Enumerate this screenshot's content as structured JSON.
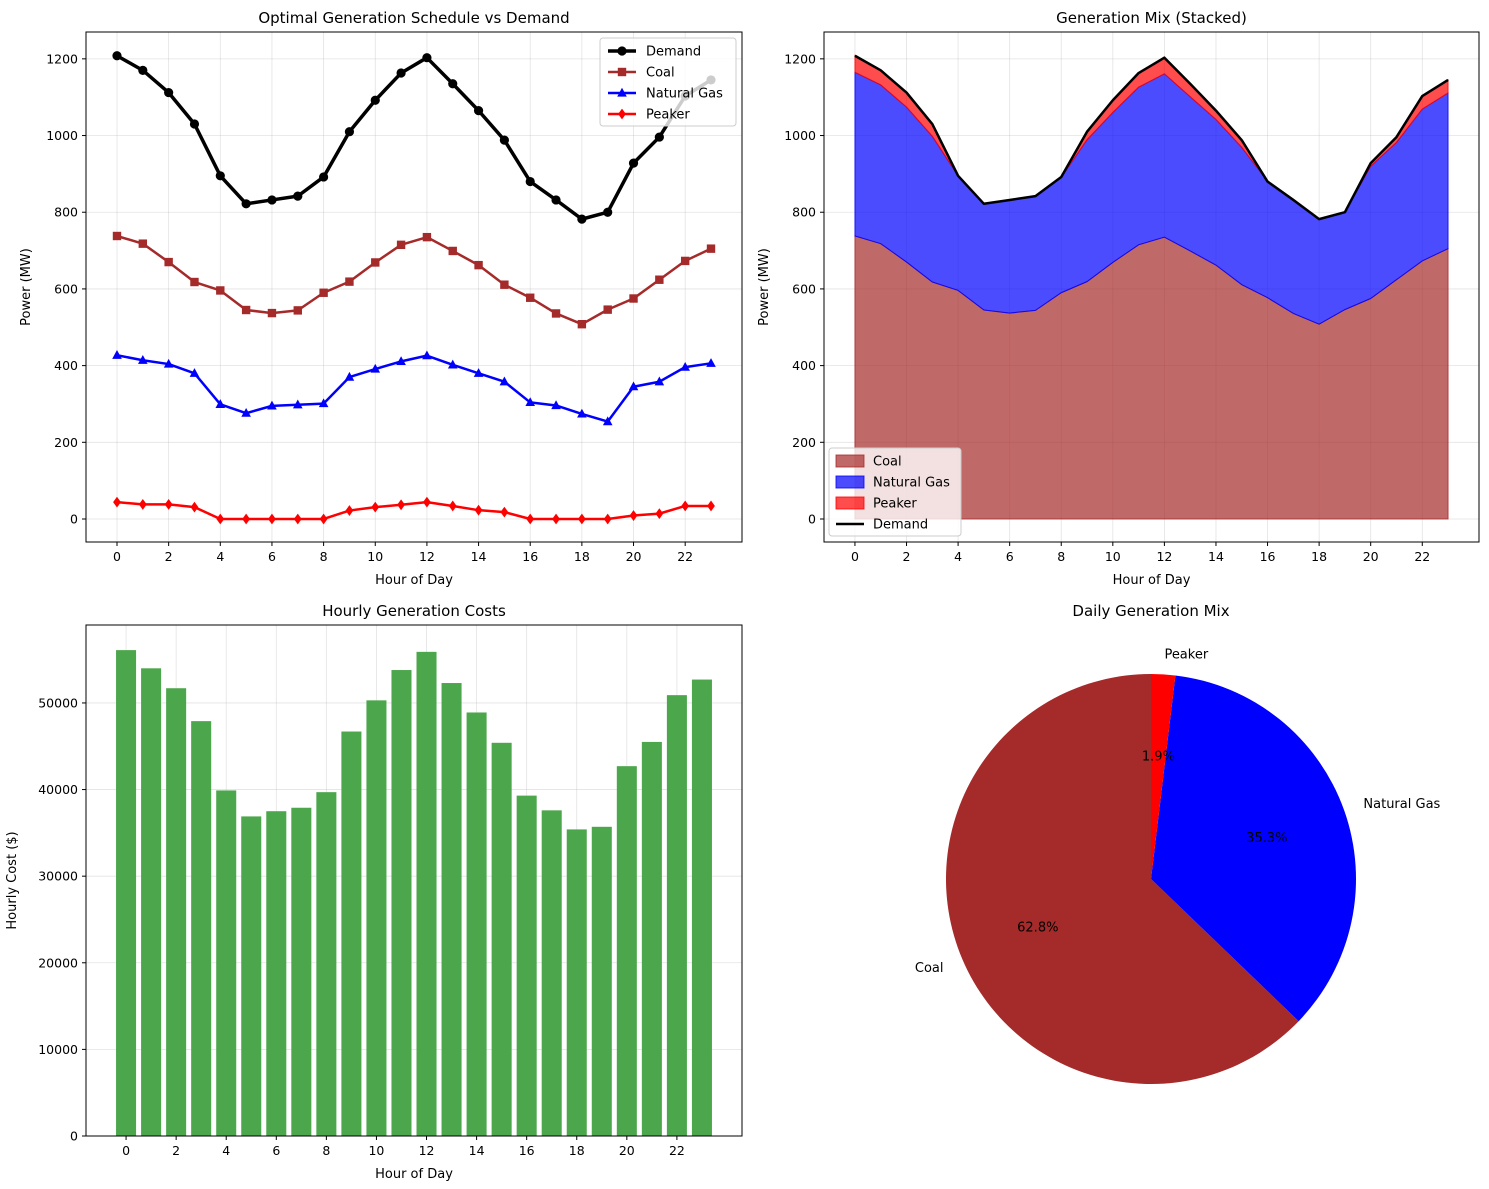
{
  "chart_data": [
    {
      "type": "line",
      "title": "Optimal Generation Schedule vs Demand",
      "xlabel": "Hour of Day",
      "ylabel": "Power (MW)",
      "xlim": [
        -1.2,
        24.2
      ],
      "ylim": [
        -60,
        1270
      ],
      "xticks": [
        0,
        2,
        4,
        6,
        8,
        10,
        12,
        14,
        16,
        18,
        20,
        22
      ],
      "yticks": [
        0,
        200,
        400,
        600,
        800,
        1000,
        1200
      ],
      "grid": true,
      "legend_position": "upper right",
      "x": [
        0,
        1,
        2,
        3,
        4,
        5,
        6,
        7,
        8,
        9,
        10,
        11,
        12,
        13,
        14,
        15,
        16,
        17,
        18,
        19,
        20,
        21,
        22,
        23
      ],
      "series": [
        {
          "name": "Demand",
          "color": "#000000",
          "marker": "circle",
          "width": 3,
          "values": [
            1208,
            1170,
            1112,
            1030,
            895,
            822,
            832,
            842,
            892,
            1010,
            1092,
            1163,
            1203,
            1135,
            1065,
            988,
            880,
            832,
            782,
            800,
            928,
            996,
            1103,
            1145
          ]
        },
        {
          "name": "Coal",
          "color": "#a52a2a",
          "marker": "square",
          "width": 2,
          "values": [
            738,
            718,
            670,
            618,
            596,
            545,
            537,
            544,
            590,
            619,
            669,
            715,
            735,
            699,
            662,
            611,
            577,
            536,
            508,
            546,
            575,
            624,
            673,
            705
          ]
        },
        {
          "name": "Natural Gas",
          "color": "#0000ff",
          "marker": "triangle",
          "width": 2,
          "values": [
            427,
            414,
            404,
            380,
            299,
            276,
            295,
            298,
            301,
            370,
            391,
            411,
            426,
            402,
            380,
            358,
            304,
            296,
            274,
            254,
            345,
            358,
            396,
            406
          ]
        },
        {
          "name": "Peaker",
          "color": "#ff0000",
          "marker": "diamond",
          "width": 2,
          "values": [
            44,
            38,
            38,
            31,
            0,
            0,
            0,
            0,
            0,
            22,
            31,
            37,
            44,
            34,
            23,
            18,
            0,
            0,
            0,
            0,
            9,
            14,
            34,
            34
          ]
        }
      ]
    },
    {
      "type": "area",
      "title": "Generation Mix (Stacked)",
      "xlabel": "Hour of Day",
      "ylabel": "Power (MW)",
      "xlim": [
        -1.2,
        24.2
      ],
      "ylim": [
        -60,
        1270
      ],
      "xticks": [
        0,
        2,
        4,
        6,
        8,
        10,
        12,
        14,
        16,
        18,
        20,
        22
      ],
      "yticks": [
        0,
        200,
        400,
        600,
        800,
        1000,
        1200
      ],
      "grid": true,
      "legend_position": "lower left",
      "stacked": true,
      "x": [
        0,
        1,
        2,
        3,
        4,
        5,
        6,
        7,
        8,
        9,
        10,
        11,
        12,
        13,
        14,
        15,
        16,
        17,
        18,
        19,
        20,
        21,
        22,
        23
      ],
      "series": [
        {
          "name": "Coal",
          "color": "#a52a2a",
          "opacity": 0.7,
          "values": [
            738,
            718,
            670,
            618,
            596,
            545,
            537,
            544,
            590,
            619,
            669,
            715,
            735,
            699,
            662,
            611,
            577,
            536,
            508,
            546,
            575,
            624,
            673,
            705
          ]
        },
        {
          "name": "Natural Gas",
          "color": "#0000ff",
          "opacity": 0.7,
          "values": [
            427,
            414,
            404,
            380,
            299,
            276,
            295,
            298,
            301,
            370,
            391,
            411,
            426,
            402,
            380,
            358,
            304,
            296,
            274,
            254,
            345,
            358,
            396,
            406
          ]
        },
        {
          "name": "Peaker",
          "color": "#ff0000",
          "opacity": 0.7,
          "values": [
            44,
            38,
            38,
            31,
            0,
            0,
            0,
            0,
            0,
            22,
            31,
            37,
            44,
            34,
            23,
            18,
            0,
            0,
            0,
            0,
            9,
            14,
            34,
            34
          ]
        }
      ],
      "line": {
        "name": "Demand",
        "color": "#000000",
        "values": [
          1208,
          1170,
          1112,
          1030,
          895,
          822,
          832,
          842,
          892,
          1010,
          1092,
          1163,
          1203,
          1135,
          1065,
          988,
          880,
          832,
          782,
          800,
          928,
          996,
          1103,
          1145
        ]
      }
    },
    {
      "type": "bar",
      "title": "Hourly Generation Costs",
      "xlabel": "Hour of Day",
      "ylabel": "Hourly Cost ($)",
      "xlim": [
        -1.6,
        24.6
      ],
      "ylim": [
        0,
        59000
      ],
      "xticks": [
        0,
        2,
        4,
        6,
        8,
        10,
        12,
        14,
        16,
        18,
        20,
        22
      ],
      "yticks": [
        0,
        10000,
        20000,
        30000,
        40000,
        50000
      ],
      "grid": true,
      "color": "#4ca64c",
      "categories": [
        0,
        1,
        2,
        3,
        4,
        5,
        6,
        7,
        8,
        9,
        10,
        11,
        12,
        13,
        14,
        15,
        16,
        17,
        18,
        19,
        20,
        21,
        22,
        23
      ],
      "values": [
        56100,
        54000,
        51700,
        47900,
        39900,
        36900,
        37500,
        37900,
        39700,
        46700,
        50300,
        53800,
        55900,
        52300,
        48900,
        45400,
        39300,
        37600,
        35400,
        35700,
        42700,
        45500,
        50900,
        52700
      ]
    },
    {
      "type": "pie",
      "title": "Daily Generation Mix",
      "start_angle_deg": 90,
      "direction": "counterclockwise",
      "slices": [
        {
          "label": "Coal",
          "value": 62.8,
          "pct_label": "62.8%",
          "color": "#a52a2a"
        },
        {
          "label": "Natural Gas",
          "value": 35.3,
          "pct_label": "35.3%",
          "color": "#0000ff"
        },
        {
          "label": "Peaker",
          "value": 1.9,
          "pct_label": "1.9%",
          "color": "#ff0000"
        }
      ]
    }
  ]
}
